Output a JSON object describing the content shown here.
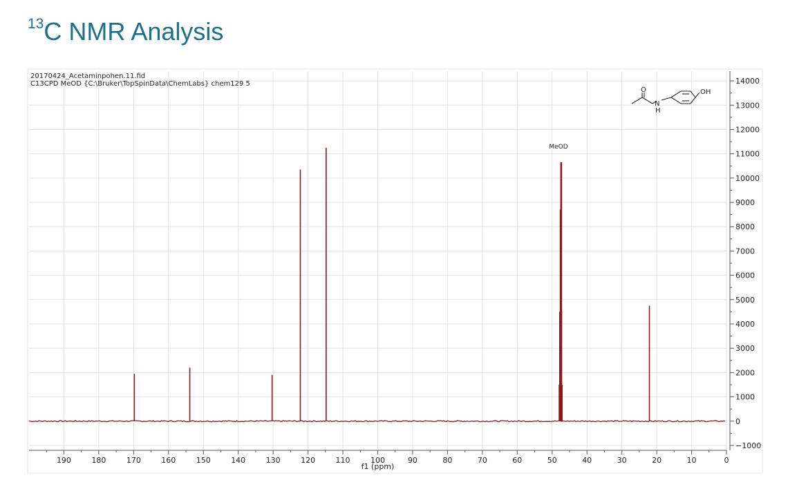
{
  "header": {
    "isotope": "13",
    "title": "C NMR Analysis"
  },
  "spectrum": {
    "file_name": "20170424_Acetaminpohen.11.fid",
    "experiment": "C13CPD MeOD {C:\\Bruker\\TopSpinData\\ChemLabs} chem129 5",
    "solvent_label": "MeOD"
  },
  "structure": {
    "label_oh": "OH",
    "label_o": "O",
    "label_n": "N",
    "label_h": "H"
  },
  "chart_data": {
    "type": "line",
    "title": "",
    "xlabel": "f1 (ppm)",
    "ylabel": "",
    "x_reversed": true,
    "xlim": [
      200,
      0
    ],
    "ylim": [
      -1200,
      14400
    ],
    "x_ticks": [
      190,
      180,
      170,
      160,
      150,
      140,
      130,
      120,
      110,
      100,
      90,
      80,
      70,
      60,
      50,
      40,
      30,
      20,
      10,
      0
    ],
    "y_ticks": [
      14000,
      13000,
      12000,
      11000,
      10000,
      9000,
      8000,
      7000,
      6000,
      5000,
      4000,
      3000,
      2000,
      1000,
      0,
      -1000
    ],
    "y_tick_labels": [
      "14000",
      "13000",
      "12000",
      "11000",
      "10000",
      "9000",
      "8000",
      "7000",
      "6000",
      "5000",
      "4000",
      "3000",
      "2000",
      "1000",
      "0",
      "−1000"
    ],
    "grid": true,
    "series_color": "#8b1a1a",
    "peaks": [
      {
        "ppm": 169.8,
        "intensity": 1950
      },
      {
        "ppm": 153.9,
        "intensity": 2200
      },
      {
        "ppm": 130.3,
        "intensity": 1900
      },
      {
        "ppm": 122.2,
        "intensity": 10350
      },
      {
        "ppm": 114.8,
        "intensity": 11250
      },
      {
        "ppm": 47.3,
        "intensity": 10650
      },
      {
        "ppm": 22.1,
        "intensity": 4750
      }
    ],
    "solvent_multiplet": [
      {
        "ppm": 48.0,
        "intensity": 1500
      },
      {
        "ppm": 47.85,
        "intensity": 4500
      },
      {
        "ppm": 47.7,
        "intensity": 8700
      },
      {
        "ppm": 47.55,
        "intensity": 10650
      },
      {
        "ppm": 47.4,
        "intensity": 8900
      },
      {
        "ppm": 47.25,
        "intensity": 4500
      },
      {
        "ppm": 47.1,
        "intensity": 1500
      }
    ]
  }
}
